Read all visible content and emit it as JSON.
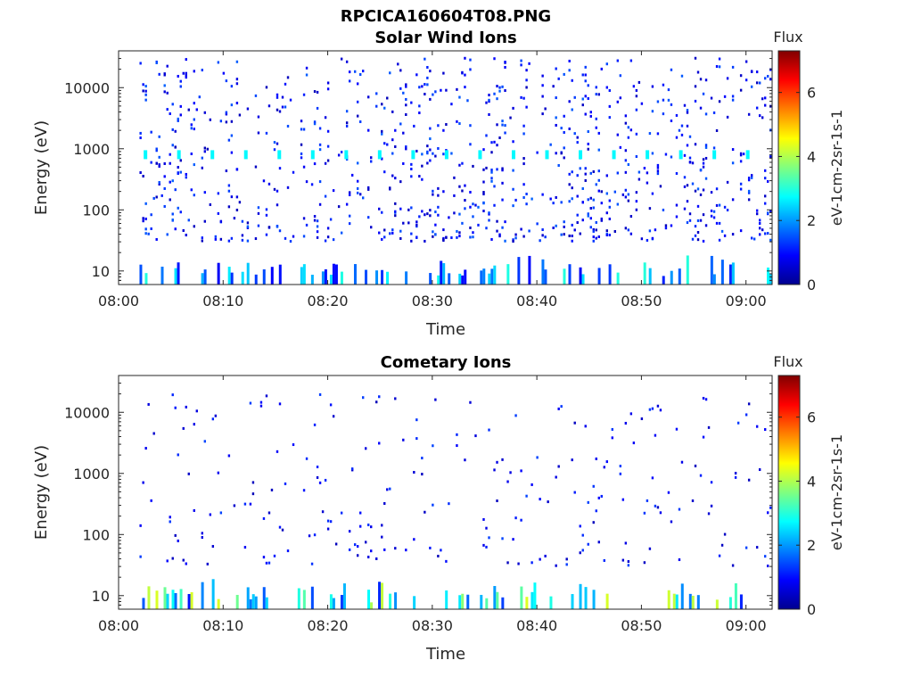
{
  "figure": {
    "title": "RPCICA160604T08.PNG"
  },
  "colors": {
    "colormap": "jet",
    "axis": "#262626"
  },
  "chart_data": [
    {
      "type": "heatmap",
      "title": "Solar Wind Ions",
      "xlabel": "Time",
      "ylabel": "Energy (eV)",
      "x_ticks": [
        "08:00",
        "08:10",
        "08:20",
        "08:30",
        "08:40",
        "08:50",
        "09:00"
      ],
      "xlim": [
        "08:00",
        "09:02.5"
      ],
      "y_scale": "log",
      "y_ticks": [
        10,
        100,
        1000,
        10000
      ],
      "y_tick_labels": [
        "10",
        "100",
        "1000",
        "10000"
      ],
      "ylim": [
        6,
        40000
      ],
      "colorbar": {
        "title": "Flux",
        "label": "eV-1cm-2sr-1s-1",
        "ticks": [
          "0",
          "2",
          "4",
          "6"
        ],
        "range": [
          0,
          7.3
        ]
      },
      "observed_span": [
        "08:02",
        "09:02.5"
      ],
      "features": [
        {
          "name": "sparse-counts",
          "energy_range": [
            30,
            30000
          ],
          "flux_range": [
            0.4,
            1.6
          ]
        },
        {
          "name": "low-energy-streaks",
          "energy_range": [
            6,
            20
          ],
          "flux_range": [
            0.8,
            3.0
          ]
        },
        {
          "name": "periodic-band",
          "energy": 800,
          "period_min": 3.2,
          "flux": 2.7
        }
      ]
    },
    {
      "type": "heatmap",
      "title": "Cometary Ions",
      "xlabel": "Time",
      "ylabel": "Energy (eV)",
      "x_ticks": [
        "08:00",
        "08:10",
        "08:20",
        "08:30",
        "08:40",
        "08:50",
        "09:00"
      ],
      "xlim": [
        "08:00",
        "09:02.5"
      ],
      "y_scale": "log",
      "y_ticks": [
        10,
        100,
        1000,
        10000
      ],
      "y_tick_labels": [
        "10",
        "100",
        "1000",
        "10000"
      ],
      "ylim": [
        6,
        40000
      ],
      "colorbar": {
        "title": "Flux",
        "label": "eV-1cm-2sr-1s-1",
        "ticks": [
          "0",
          "2",
          "4",
          "6"
        ],
        "range": [
          0,
          7.3
        ]
      },
      "observed_span": [
        "08:02",
        "09:02.5"
      ],
      "features": [
        {
          "name": "sparse-counts",
          "energy_range": [
            30,
            20000
          ],
          "flux_range": [
            0.4,
            1.4
          ]
        },
        {
          "name": "low-energy-streaks",
          "energy_range": [
            6,
            20
          ],
          "flux_range": [
            1.0,
            4.5
          ]
        }
      ]
    }
  ]
}
